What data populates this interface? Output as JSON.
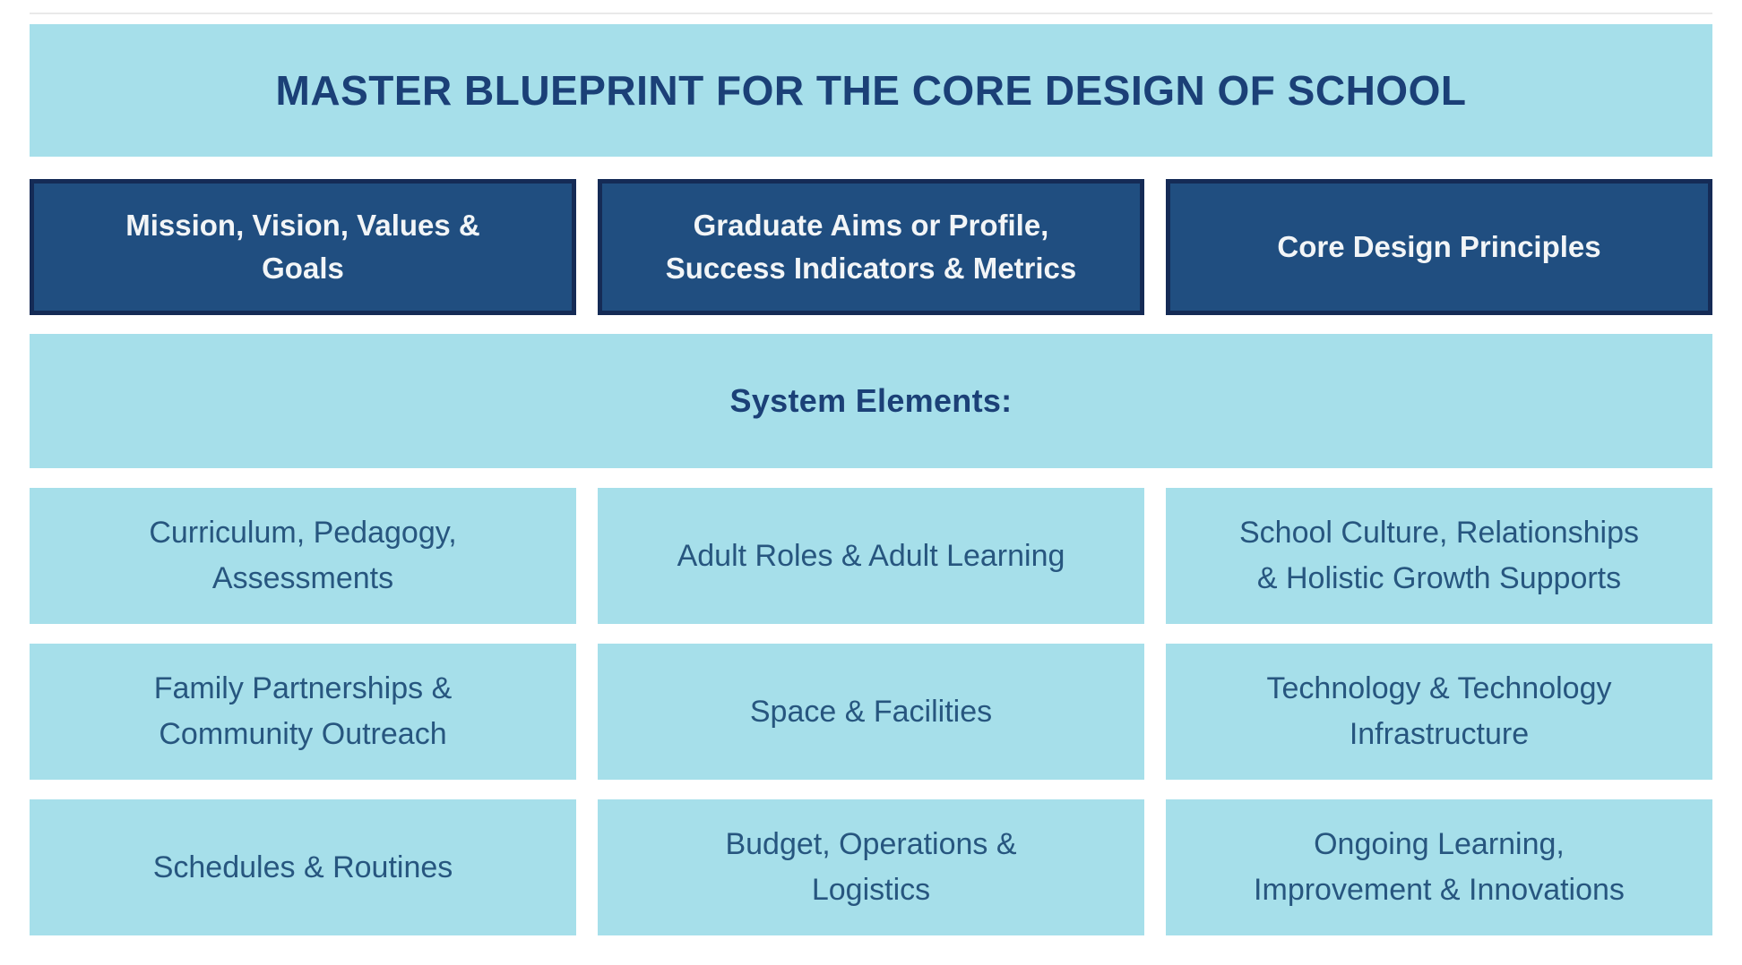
{
  "page": {
    "title": "MASTER BLUEPRINT FOR THE CORE DESIGN OF SCHOOL"
  },
  "pillars": [
    {
      "id": "mission-vision",
      "label": "Mission, Vision, Values &\nGoals"
    },
    {
      "id": "graduate-aims",
      "label": "Graduate Aims or Profile,\nSuccess Indicators & Metrics"
    },
    {
      "id": "core-design-principles",
      "label": "Core Design Principles"
    }
  ],
  "system_elements": {
    "heading": "System Elements:"
  },
  "elements": [
    {
      "id": "curriculum",
      "label": "Curriculum, Pedagogy,\nAssessments"
    },
    {
      "id": "adult-roles",
      "label": "Adult Roles & Adult Learning"
    },
    {
      "id": "school-culture",
      "label": "School Culture, Relationships\n& Holistic Growth Supports"
    },
    {
      "id": "family-partnerships",
      "label": "Family Partnerships &\nCommunity Outreach"
    },
    {
      "id": "space-facilities",
      "label": "Space & Facilities"
    },
    {
      "id": "technology",
      "label": "Technology & Technology\nInfrastructure"
    },
    {
      "id": "schedules",
      "label": "Schedules & Routines"
    },
    {
      "id": "budget-operations",
      "label": "Budget, Operations &\nLogistics"
    },
    {
      "id": "ongoing-learning",
      "label": "Ongoing Learning,\nImprovement & Innovations"
    }
  ],
  "colors": {
    "light_blue": "#a6dfea",
    "dark_blue": "#204e80",
    "dark_blue_border": "#152b56",
    "navy_text": "#1b4077",
    "cell_text": "#27567f",
    "white_text": "#f2f5f7",
    "divider": "#e9e9e9",
    "page_bg": "#ffffff"
  }
}
